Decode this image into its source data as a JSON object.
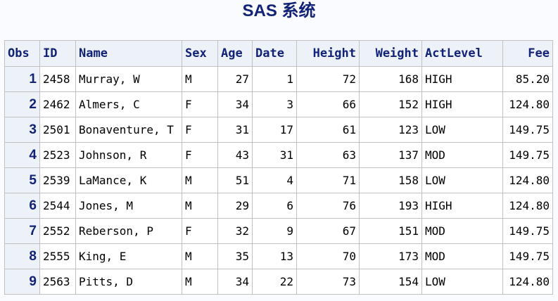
{
  "title": "SAS 系统",
  "columns": [
    "Obs",
    "ID",
    "Name",
    "Sex",
    "Age",
    "Date",
    "Height",
    "Weight",
    "ActLevel",
    "Fee"
  ],
  "rows": [
    [
      "1",
      "2458",
      "Murray, W",
      "M",
      "27",
      "1",
      "72",
      "168",
      "HIGH",
      "85.20"
    ],
    [
      "2",
      "2462",
      "Almers, C",
      "F",
      "34",
      "3",
      "66",
      "152",
      "HIGH",
      "124.80"
    ],
    [
      "3",
      "2501",
      "Bonaventure, T",
      "F",
      "31",
      "17",
      "61",
      "123",
      "LOW",
      "149.75"
    ],
    [
      "4",
      "2523",
      "Johnson, R",
      "F",
      "43",
      "31",
      "63",
      "137",
      "MOD",
      "149.75"
    ],
    [
      "5",
      "2539",
      "LaMance, K",
      "M",
      "51",
      "4",
      "71",
      "158",
      "LOW",
      "124.80"
    ],
    [
      "6",
      "2544",
      "Jones, M",
      "M",
      "29",
      "6",
      "76",
      "193",
      "HIGH",
      "124.80"
    ],
    [
      "7",
      "2552",
      "Reberson, P",
      "F",
      "32",
      "9",
      "67",
      "151",
      "MOD",
      "149.75"
    ],
    [
      "8",
      "2555",
      "King, E",
      "M",
      "35",
      "13",
      "70",
      "173",
      "MOD",
      "149.75"
    ],
    [
      "9",
      "2563",
      "Pitts, D",
      "M",
      "34",
      "22",
      "73",
      "154",
      "LOW",
      "124.80"
    ]
  ]
}
